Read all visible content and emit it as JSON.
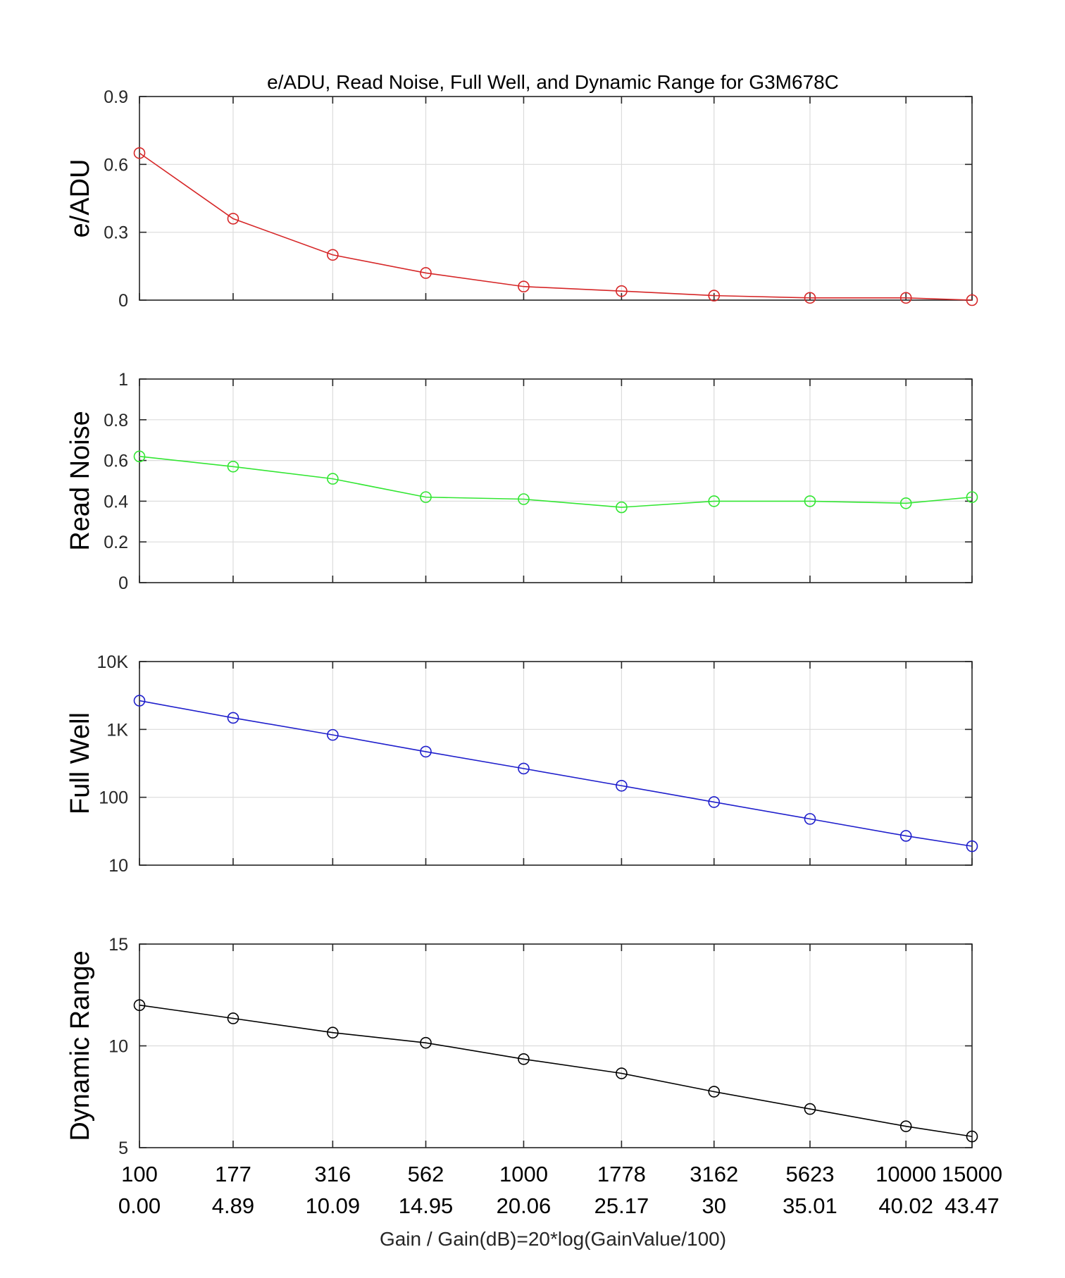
{
  "chart_data": {
    "title": "e/ADU, Read Noise, Full Well, and Dynamic Range for G3M678C",
    "xlabel": "Gain / Gain(dB)=20*log(GainValue/100)",
    "x_tick_labels_gain": [
      "100",
      "177",
      "316",
      "562",
      "1000",
      "1778",
      "3162",
      "5623",
      "10000",
      "15000"
    ],
    "x_tick_labels_db": [
      "0.00",
      "4.89",
      "10.09",
      "14.95",
      "20.06",
      "25.17",
      "30",
      "35.01",
      "40.02",
      "43.47"
    ],
    "x_db_values": [
      0.0,
      4.89,
      10.09,
      14.95,
      20.06,
      25.17,
      30.0,
      35.01,
      40.02,
      43.47
    ],
    "panels": [
      {
        "type": "line",
        "ylabel": "e/ADU",
        "scale": "linear",
        "ylim": [
          0,
          0.9
        ],
        "yticks": [
          0,
          0.3,
          0.6,
          0.9
        ],
        "ytick_labels": [
          "0",
          "0.3",
          "0.6",
          "0.9"
        ],
        "color": "#d62728",
        "values": [
          0.65,
          0.36,
          0.2,
          0.12,
          0.06,
          0.04,
          0.02,
          0.01,
          0.01,
          0.0
        ]
      },
      {
        "type": "line",
        "ylabel": "Read Noise",
        "scale": "linear",
        "ylim": [
          0,
          1
        ],
        "yticks": [
          0,
          0.2,
          0.4,
          0.6,
          0.8,
          1
        ],
        "ytick_labels": [
          "0",
          "0.2",
          "0.4",
          "0.6",
          "0.8",
          "1"
        ],
        "color": "#33e633",
        "values": [
          0.62,
          0.57,
          0.51,
          0.42,
          0.41,
          0.37,
          0.4,
          0.4,
          0.39,
          0.42
        ]
      },
      {
        "type": "line",
        "ylabel": "Full Well",
        "scale": "log",
        "ylim": [
          10,
          10000
        ],
        "yticks": [
          10,
          100,
          1000,
          10000
        ],
        "ytick_labels": [
          "10",
          "100",
          "1K",
          "10K"
        ],
        "color": "#1f1fcc",
        "values": [
          2650,
          1480,
          830,
          470,
          265,
          148,
          85,
          48,
          27,
          19
        ]
      },
      {
        "type": "line",
        "ylabel": "Dynamic Range",
        "scale": "linear",
        "ylim": [
          5,
          15
        ],
        "yticks": [
          5,
          10,
          15
        ],
        "ytick_labels": [
          "5",
          "10",
          "15"
        ],
        "color": "#000000",
        "values": [
          12.0,
          11.35,
          10.65,
          10.15,
          9.35,
          8.65,
          7.75,
          6.9,
          6.05,
          5.55
        ]
      }
    ]
  }
}
